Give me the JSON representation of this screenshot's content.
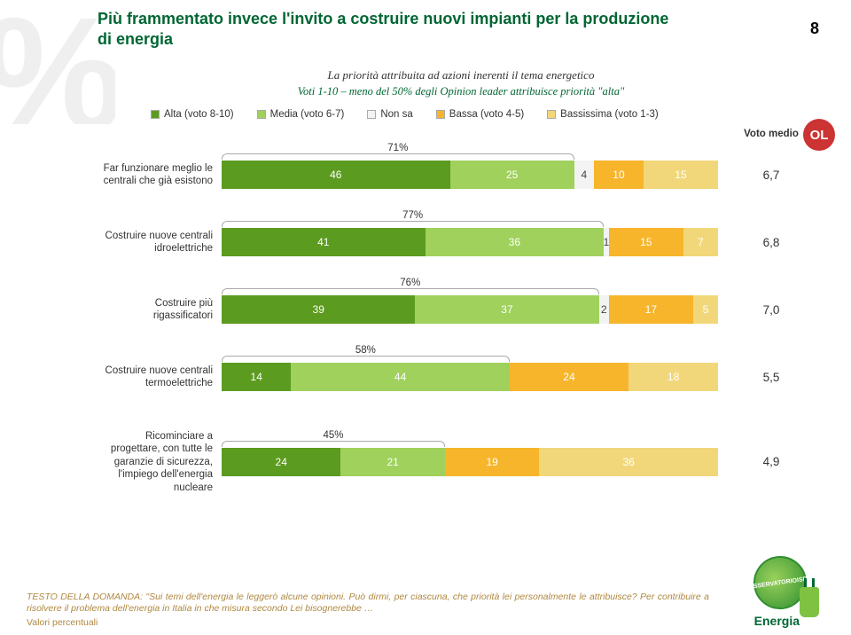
{
  "pageNumber": "8",
  "title": "Più frammentato invece l'invito a costruire nuovi impianti per la produzione di energia",
  "subtitle": "La priorità attribuita ad azioni inerenti il tema energetico",
  "votiLine": "Voti 1-10 – meno del 50% degli Opinion leader attribuisce priorità \"alta\"",
  "olBadge": "OL",
  "votoMedioHeader": "Voto medio",
  "legend": [
    {
      "label": "Alta (voto 8-10)",
      "color": "#5b9b1f"
    },
    {
      "label": "Media (voto 6-7)",
      "color": "#9fd15c"
    },
    {
      "label": "Non sa",
      "color": "#f3f3f3"
    },
    {
      "label": "Bassa (voto 4-5)",
      "color": "#f7b52c"
    },
    {
      "label": "Bassissima (voto 1-3)",
      "color": "#f2d77a"
    }
  ],
  "colors": {
    "alta": "#5b9b1f",
    "media": "#9fd15c",
    "nonsa": "#f3f3f3",
    "bassa": "#f7b52c",
    "bassissima": "#f2d77a",
    "bracket_border": "#aaaaaa"
  },
  "rows": [
    {
      "label": "Far funzionare meglio le centrali che già esistono",
      "bracketPct": "71%",
      "bracketSpan": [
        0,
        71
      ],
      "segments": [
        {
          "v": 46,
          "k": "alta"
        },
        {
          "v": 25,
          "k": "media"
        },
        {
          "v": 4,
          "k": "nonsa"
        },
        {
          "v": 10,
          "k": "bassa"
        },
        {
          "v": 15,
          "k": "bassissima"
        }
      ],
      "votoMedio": "6,7"
    },
    {
      "label": "Costruire nuove centrali idroelettriche",
      "bracketPct": "77%",
      "bracketSpan": [
        0,
        77
      ],
      "segments": [
        {
          "v": 41,
          "k": "alta"
        },
        {
          "v": 36,
          "k": "media"
        },
        {
          "v": 1,
          "k": "nonsa"
        },
        {
          "v": 15,
          "k": "bassa"
        },
        {
          "v": 7,
          "k": "bassissima"
        }
      ],
      "votoMedio": "6,8"
    },
    {
      "label": "Costruire più rigassificatori",
      "bracketPct": "76%",
      "bracketSpan": [
        0,
        76
      ],
      "segments": [
        {
          "v": 39,
          "k": "alta"
        },
        {
          "v": 37,
          "k": "media"
        },
        {
          "v": 2,
          "k": "nonsa"
        },
        {
          "v": 17,
          "k": "bassa"
        },
        {
          "v": 5,
          "k": "bassissima"
        }
      ],
      "votoMedio": "7,0"
    },
    {
      "label": "Costruire nuove centrali termoelettriche",
      "bracketPct": "58%",
      "bracketSpan": [
        0,
        58
      ],
      "segments": [
        {
          "v": 14,
          "k": "alta"
        },
        {
          "v": 44,
          "k": "media"
        },
        {
          "v": 0,
          "k": "nonsa"
        },
        {
          "v": 24,
          "k": "bassa"
        },
        {
          "v": 18,
          "k": "bassissima"
        }
      ],
      "votoMedio": "5,5"
    },
    {
      "label": "Ricominciare a progettare, con tutte le garanzie di sicurezza, l'impiego dell'energia nucleare",
      "bracketPct": "45%",
      "bracketSpan": [
        0,
        45
      ],
      "segments": [
        {
          "v": 24,
          "k": "alta"
        },
        {
          "v": 21,
          "k": "media"
        },
        {
          "v": 0,
          "k": "nonsa"
        },
        {
          "v": 19,
          "k": "bassa"
        },
        {
          "v": 36,
          "k": "bassissima"
        }
      ],
      "votoMedio": "4,9"
    }
  ],
  "questionText": "TESTO DELLA DOMANDA: \"Sui temi dell'energia le leggerò alcune opinioni. Può dirmi, per ciascuna, che priorità lei personalmente le attribuisce? Per contribuire a risolvere il problema dell'energia in Italia in che misura secondo Lei bisognerebbe …",
  "footMeta": "Valori percentuali",
  "logo": {
    "observatorio": "OSSERVATORIO",
    "ispo": "ISPO",
    "energia": "Energia"
  }
}
